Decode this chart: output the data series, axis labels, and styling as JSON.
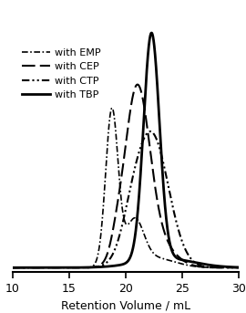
{
  "xlabel": "Retention Volume / mL",
  "xlim": [
    10,
    30
  ],
  "ylim": [
    -0.02,
    1.1
  ],
  "xticks": [
    10,
    15,
    20,
    25,
    30
  ],
  "legend_labels": [
    "with EMP",
    "with CEP",
    "with CTP",
    "with TBP"
  ],
  "background_color": "#ffffff",
  "line_color": "#000000",
  "curves": {
    "emp": {
      "components": [
        {
          "mu": 18.8,
          "sigma": 0.55,
          "amp": 0.65
        },
        {
          "mu": 20.8,
          "sigma": 0.8,
          "amp": 0.18
        },
        {
          "mu": 22.5,
          "sigma": 1.8,
          "amp": 0.04
        }
      ],
      "scale": 0.68
    },
    "cep": {
      "components": [
        {
          "mu": 21.0,
          "sigma": 1.1,
          "amp": 0.75
        },
        {
          "mu": 22.8,
          "sigma": 1.5,
          "amp": 0.1
        },
        {
          "mu": 19.2,
          "sigma": 0.5,
          "amp": 0.05
        }
      ],
      "scale": 0.78
    },
    "ctp": {
      "components": [
        {
          "mu": 22.3,
          "sigma": 1.5,
          "amp": 0.58
        },
        {
          "mu": 20.5,
          "sigma": 0.9,
          "amp": 0.08
        }
      ],
      "scale": 0.58
    },
    "tbp": {
      "components": [
        {
          "mu": 22.3,
          "sigma": 0.7,
          "amp": 1.0
        },
        {
          "mu": 23.5,
          "sigma": 2.5,
          "amp": 0.04
        }
      ],
      "scale": 1.0
    }
  }
}
